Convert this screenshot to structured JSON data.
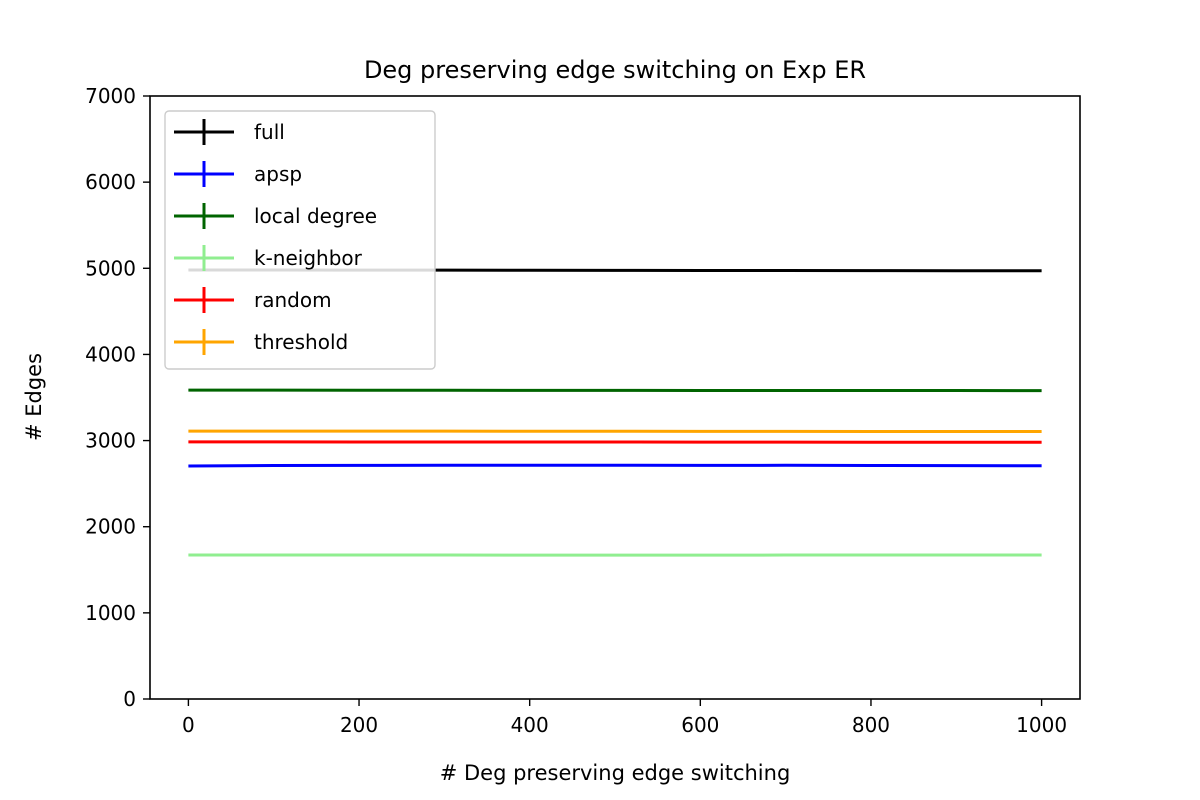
{
  "chart_data": {
    "type": "line",
    "title": "Deg preserving edge switching on Exp ER",
    "xlabel": "# Deg preserving edge switching",
    "ylabel": "# Edges",
    "xlim": [
      -45,
      1045
    ],
    "ylim": [
      0,
      7000
    ],
    "x_ticks": [
      0,
      200,
      400,
      600,
      800,
      1000
    ],
    "x_tick_labels": [
      "0",
      "200",
      "400",
      "600",
      "800",
      "1000"
    ],
    "y_ticks": [
      0,
      1000,
      2000,
      3000,
      4000,
      5000,
      6000,
      7000
    ],
    "y_tick_labels": [
      "0",
      "1000",
      "2000",
      "3000",
      "4000",
      "5000",
      "6000",
      "7000"
    ],
    "grid": false,
    "legend_position": "top-left",
    "x": [
      0,
      100,
      200,
      300,
      400,
      500,
      600,
      700,
      800,
      900,
      1000
    ],
    "series": [
      {
        "name": "full",
        "color": "#000000",
        "values": [
          4980,
          4980,
          4979,
          4978,
          4977,
          4976,
          4975,
          4974,
          4973,
          4972,
          4971
        ]
      },
      {
        "name": "apsp",
        "color": "#0000ff",
        "values": [
          2705,
          2710,
          2712,
          2713,
          2714,
          2713,
          2712,
          2713,
          2711,
          2709,
          2708
        ]
      },
      {
        "name": "local degree",
        "color": "#006400",
        "values": [
          3585,
          3585,
          3584,
          3584,
          3583,
          3583,
          3582,
          3582,
          3581,
          3581,
          3580
        ]
      },
      {
        "name": "k-neighbor",
        "color": "#90ee90",
        "values": [
          1672,
          1672,
          1671,
          1671,
          1670,
          1670,
          1670,
          1671,
          1671,
          1672,
          1672
        ]
      },
      {
        "name": "random",
        "color": "#ff0000",
        "values": [
          2985,
          2985,
          2984,
          2984,
          2983,
          2983,
          2982,
          2982,
          2981,
          2981,
          2980
        ]
      },
      {
        "name": "threshold",
        "color": "#ffa500",
        "values": [
          3110,
          3110,
          3109,
          3109,
          3108,
          3108,
          3107,
          3107,
          3106,
          3106,
          3105
        ]
      }
    ]
  }
}
